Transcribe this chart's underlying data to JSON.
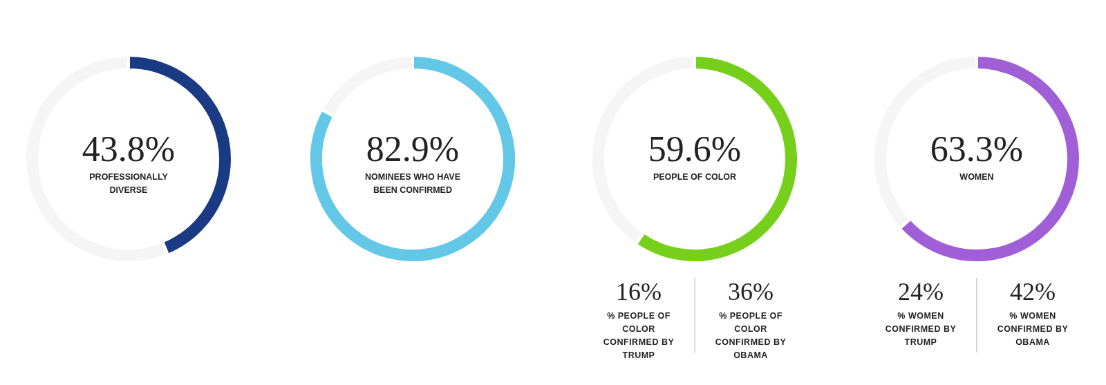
{
  "chart_data": [
    {
      "type": "donut",
      "categories": [
        "PROFESSIONALLY DIVERSE",
        null
      ],
      "values": [
        43.8,
        56.2
      ],
      "colors": [
        "#1b3a84",
        "#f5f5f5"
      ],
      "value_labels": [
        "43.8%",
        null
      ],
      "legend": false
    },
    {
      "type": "donut",
      "categories": [
        "NOMINEES WHO HAVE BEEN CONFIRMED",
        null
      ],
      "values": [
        82.9,
        17.1
      ],
      "colors": [
        "#63c7e8",
        "#f5f5f5"
      ],
      "value_labels": [
        "82.9%",
        null
      ],
      "legend": false
    },
    {
      "type": "donut",
      "categories": [
        "PEOPLE OF COLOR",
        null
      ],
      "values": [
        59.6,
        40.4
      ],
      "colors": [
        "#76cf1a",
        "#f5f5f5"
      ],
      "value_labels": [
        "59.6%",
        null
      ],
      "legend": false
    },
    {
      "type": "donut",
      "categories": [
        "WOMEN",
        null
      ],
      "values": [
        63.3,
        36.7
      ],
      "colors": [
        "#a05fd6",
        "#f5f5f5"
      ],
      "value_labels": [
        "63.3%",
        null
      ],
      "legend": false
    },
    {
      "type": "other",
      "annotations": [
        "16%",
        "% PEOPLE OF COLOR CONFIRMED BY TRUMP",
        "36%",
        "% PEOPLE OF COLOR CONFIRMED BY OBAMA"
      ]
    },
    {
      "type": "other",
      "annotations": [
        "24%",
        "% WOMEN CONFIRMED BY TRUMP",
        "42%",
        "% WOMEN CONFIRMED BY OBAMA"
      ]
    }
  ]
}
